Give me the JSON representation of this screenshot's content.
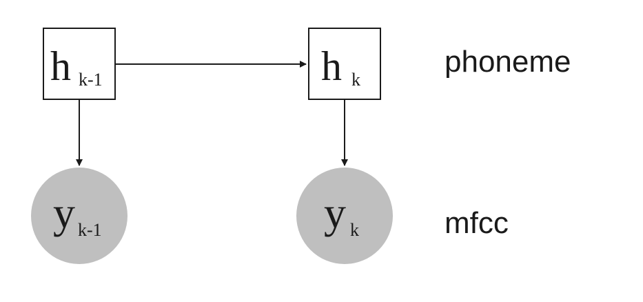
{
  "nodes": {
    "h_prev": {
      "base": "h",
      "sub": "k-1"
    },
    "h_curr": {
      "base": "h",
      "sub": "k"
    },
    "y_prev": {
      "base": "y",
      "sub": "k-1"
    },
    "y_curr": {
      "base": "y",
      "sub": "k"
    }
  },
  "row_labels": {
    "hidden": "phoneme",
    "observed": "mfcc"
  },
  "colors": {
    "observed_fill": "#bfbfbf",
    "stroke": "#1a1a1a"
  }
}
